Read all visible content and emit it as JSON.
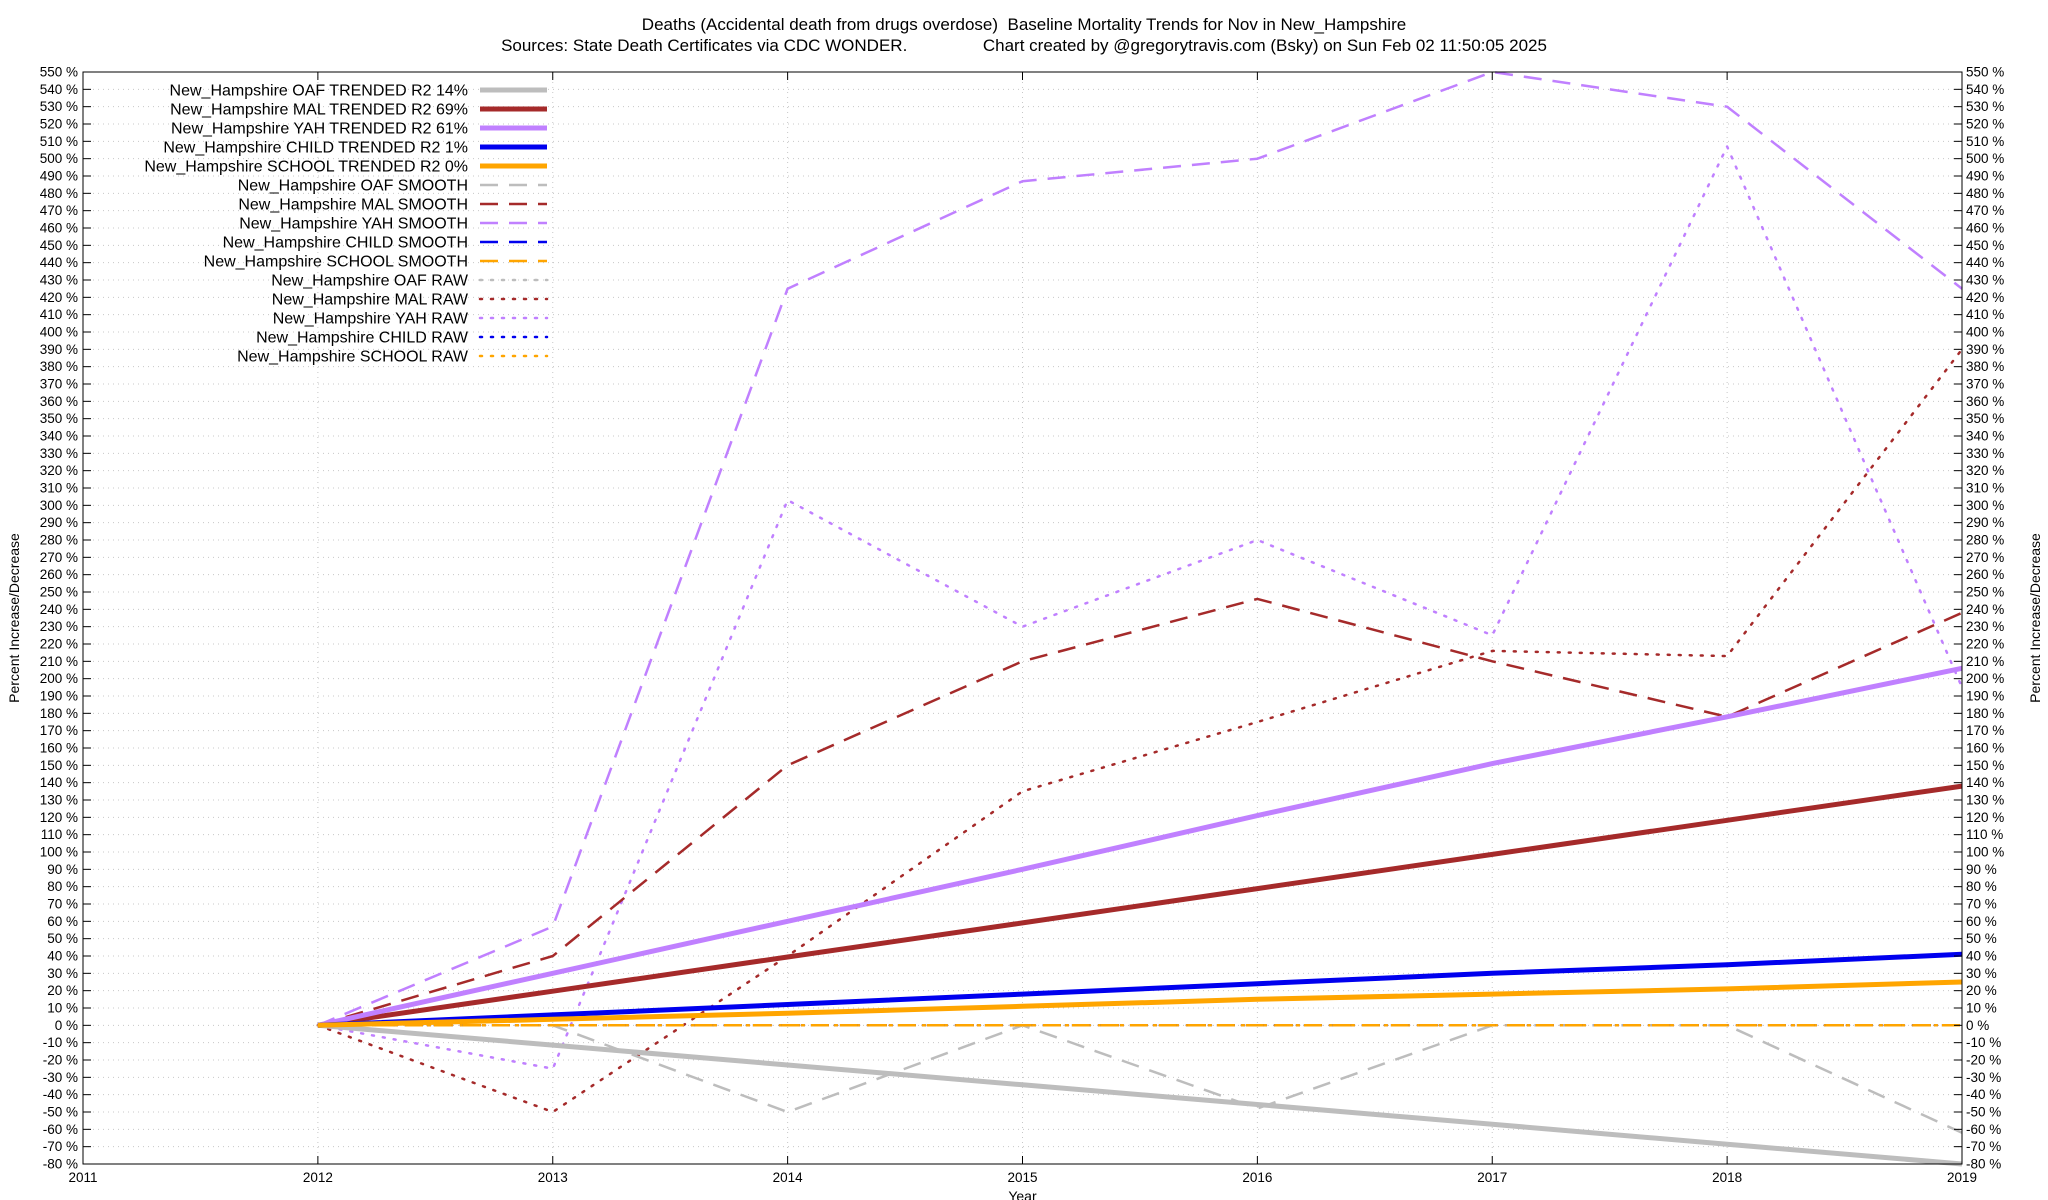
{
  "chart_data": {
    "type": "line",
    "title_line1": "Deaths (Accidental death from drugs overdose)  Baseline Mortality Trends for Nov in New_Hampshire",
    "title_line2": "Sources: State Death Certificates via CDC WONDER.                Chart created by @gregorytravis.com (Bsky) on Sun Feb 02 11:50:05 2025",
    "xlabel": "Year",
    "ylabel": "Percent Increase/Decrease",
    "xlim": [
      2011,
      2019
    ],
    "ylim": [
      -80,
      550
    ],
    "x_ticks": [
      2011,
      2012,
      2013,
      2014,
      2015,
      2016,
      2017,
      2018,
      2019
    ],
    "y_tick_step": 10,
    "y_tick_suffix": " %",
    "grid": true,
    "legend_position": "top-left",
    "series": [
      {
        "name": "New_Hampshire OAF TRENDED R2  14%",
        "style": "solid",
        "color": "#bdbdbd",
        "x": [
          2012,
          2013,
          2014,
          2015,
          2016,
          2017,
          2018,
          2019
        ],
        "y": [
          0,
          -11.4,
          -22.9,
          -34.3,
          -45.7,
          -57.1,
          -68.6,
          -80
        ]
      },
      {
        "name": "New_Hampshire MAL TRENDED R2  69%",
        "style": "solid",
        "color": "#a52a2a",
        "x": [
          2012,
          2013,
          2014,
          2015,
          2016,
          2017,
          2018,
          2019
        ],
        "y": [
          0,
          19.7,
          39.4,
          59.1,
          78.9,
          98.6,
          118.3,
          138
        ]
      },
      {
        "name": "New_Hampshire YAH TRENDED R2  61%",
        "style": "solid",
        "color": "#c080ff",
        "x": [
          2012,
          2013,
          2014,
          2015,
          2016,
          2017,
          2018,
          2019
        ],
        "y": [
          0,
          30,
          60,
          90,
          121,
          151,
          178,
          206
        ]
      },
      {
        "name": "New_Hampshire CHILD TRENDED R2  1%",
        "style": "solid",
        "color": "#0000ee",
        "x": [
          2012,
          2013,
          2014,
          2015,
          2016,
          2017,
          2018,
          2019
        ],
        "y": [
          0,
          6,
          12,
          18,
          24,
          30,
          35,
          41
        ]
      },
      {
        "name": "New_Hampshire SCHOOL TRENDED R2  0%",
        "style": "solid",
        "color": "#ffa500",
        "x": [
          2012,
          2013,
          2014,
          2015,
          2016,
          2017,
          2018,
          2019
        ],
        "y": [
          0,
          3.5,
          7,
          11,
          15,
          18,
          21,
          25
        ]
      },
      {
        "name": "New_Hampshire OAF SMOOTH",
        "style": "dashed",
        "color": "#bdbdbd",
        "x": [
          2012,
          2013,
          2014,
          2015,
          2016,
          2017,
          2018,
          2019
        ],
        "y": [
          0,
          0,
          -50,
          0,
          -48,
          0,
          0,
          -62
        ]
      },
      {
        "name": "New_Hampshire MAL SMOOTH",
        "style": "dashed",
        "color": "#a52a2a",
        "x": [
          2012,
          2013,
          2014,
          2015,
          2016,
          2017,
          2018,
          2019
        ],
        "y": [
          0,
          40,
          150,
          210,
          246,
          210,
          178,
          238
        ]
      },
      {
        "name": "New_Hampshire YAH SMOOTH",
        "style": "dashed",
        "color": "#c080ff",
        "x": [
          2012,
          2013,
          2014,
          2015,
          2016,
          2017,
          2018,
          2019
        ],
        "y": [
          0,
          57,
          425,
          487,
          500,
          550,
          530,
          425
        ]
      },
      {
        "name": "New_Hampshire CHILD SMOOTH",
        "style": "dashed",
        "color": "#0000ee",
        "x": [
          2012,
          2013,
          2014,
          2015,
          2016,
          2017,
          2018,
          2019
        ],
        "y": [
          0,
          0,
          0,
          0,
          0,
          0,
          0,
          0
        ]
      },
      {
        "name": "New_Hampshire SCHOOL SMOOTH",
        "style": "dashed",
        "color": "#ffa500",
        "x": [
          2012,
          2013,
          2014,
          2015,
          2016,
          2017,
          2018,
          2019
        ],
        "y": [
          0,
          0,
          0,
          0,
          0,
          0,
          0,
          0
        ]
      },
      {
        "name": "New_Hampshire OAF RAW",
        "style": "dotted",
        "color": "#bdbdbd",
        "x": [
          2012,
          2013,
          2014,
          2015,
          2016,
          2017,
          2018,
          2019
        ],
        "y": [
          0,
          0,
          0,
          0,
          0,
          0,
          0,
          0
        ]
      },
      {
        "name": "New_Hampshire MAL RAW",
        "style": "dotted",
        "color": "#a52a2a",
        "x": [
          2012,
          2013,
          2014,
          2015,
          2016,
          2017,
          2018,
          2019
        ],
        "y": [
          0,
          -50,
          40,
          135,
          175,
          216,
          213,
          390
        ]
      },
      {
        "name": "New_Hampshire YAH RAW",
        "style": "dotted",
        "color": "#c080ff",
        "x": [
          2012,
          2013,
          2014,
          2015,
          2016,
          2017,
          2018,
          2019
        ],
        "y": [
          0,
          -25,
          303,
          230,
          280,
          225,
          507,
          195
        ]
      },
      {
        "name": "New_Hampshire CHILD RAW",
        "style": "dotted",
        "color": "#0000ee",
        "x": [
          2012,
          2013,
          2014,
          2015,
          2016,
          2017,
          2018,
          2019
        ],
        "y": [
          0,
          0,
          0,
          0,
          0,
          0,
          0,
          0
        ]
      },
      {
        "name": "New_Hampshire SCHOOL RAW",
        "style": "dotted",
        "color": "#ffa500",
        "x": [
          2012,
          2013,
          2014,
          2015,
          2016,
          2017,
          2018,
          2019
        ],
        "y": [
          0,
          0,
          0,
          0,
          0,
          0,
          0,
          0
        ]
      }
    ]
  }
}
